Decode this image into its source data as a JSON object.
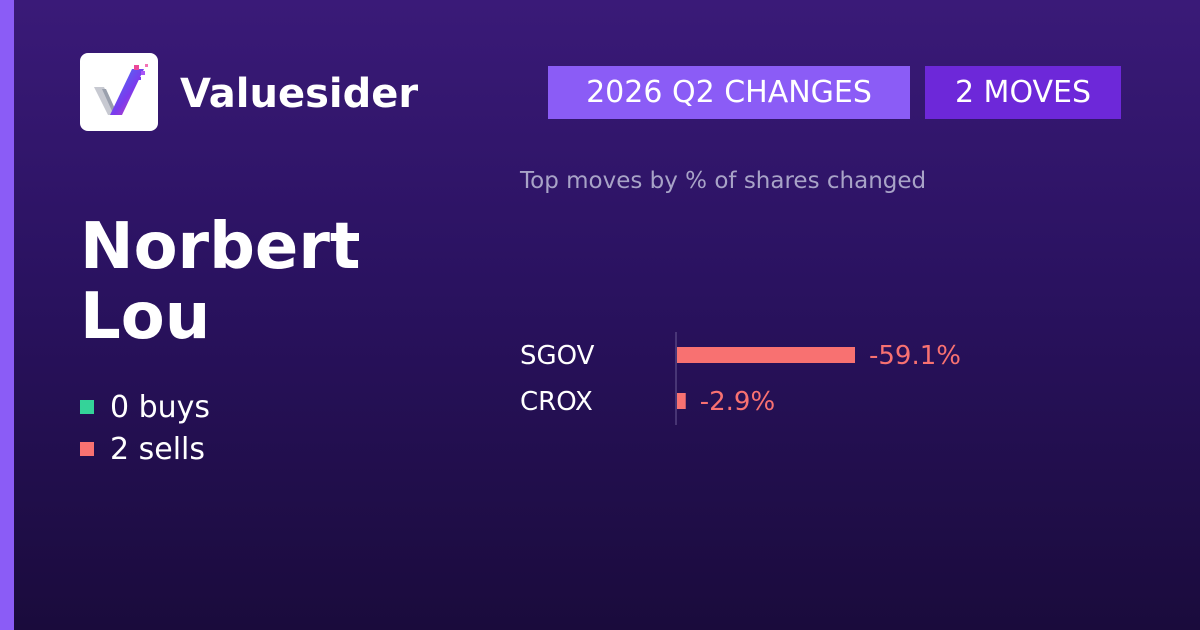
{
  "brand": {
    "name": "Valuesider",
    "logo_icon": "valuesider-logo-icon"
  },
  "header": {
    "quarter_badge": "2026 Q2 CHANGES",
    "moves_badge": "2 MOVES"
  },
  "investor": {
    "name": "Norbert Lou"
  },
  "summary": {
    "buys": "0 buys",
    "sells": "2 sells"
  },
  "colors": {
    "accent": "#8b5cf6",
    "accent_dark": "#6d28d9",
    "buy": "#34d399",
    "sell": "#f87171"
  },
  "chart_data": {
    "type": "bar",
    "orientation": "horizontal",
    "title": "Top moves by % of shares changed",
    "categories": [
      "SGOV",
      "CROX"
    ],
    "values": [
      -59.1,
      -2.9
    ],
    "value_labels": [
      "-59.1%",
      "-2.9%"
    ],
    "unit": "%",
    "grid": false,
    "legend": "none"
  }
}
